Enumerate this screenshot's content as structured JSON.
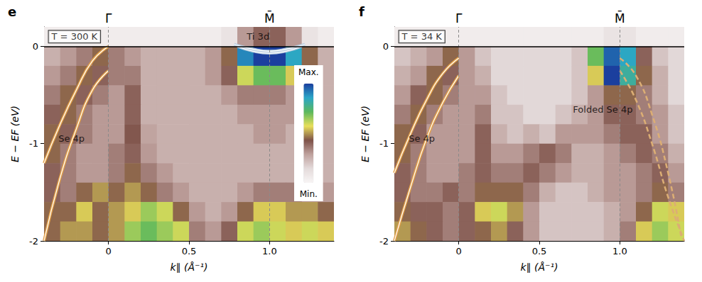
{
  "chart_data": [
    {
      "type": "heatmap",
      "title": "e",
      "x_label": "k∥ (Å⁻¹)",
      "y_label": "E − EF (eV)",
      "xlim": [
        -0.4,
        1.4
      ],
      "xticks": [
        0,
        0.5,
        {
          "value": 1,
          "label": "1.0"
        }
      ],
      "ylim": [
        -2,
        0.2
      ],
      "yticks": [
        -2,
        -1,
        0
      ],
      "grid": false,
      "reference_lines": {
        "x": [
          {
            "value": 0,
            "label": "Γ̄"
          },
          {
            "value": 1,
            "label": "M̄"
          }
        ],
        "y": [
          0
        ]
      },
      "colorbar_range": [
        0,
        1
      ],
      "colorbar_labels": [
        "Max.",
        "Min."
      ],
      "cells": {
        "x": [
          -0.35,
          -0.25,
          -0.15,
          -0.05,
          0.05,
          0.15,
          0.25,
          0.35,
          0.45,
          0.55,
          0.65,
          0.75,
          0.85,
          0.95,
          1.05,
          1.15,
          1.25,
          1.35
        ],
        "y": [
          0.1,
          -0.1,
          -0.3,
          -0.5,
          -0.7,
          -0.9,
          -1.1,
          -1.3,
          -1.5,
          -1.7,
          -1.9
        ],
        "values": [
          [
            0.05,
            0.05,
            0.05,
            0.05,
            0.05,
            0.05,
            0.05,
            0.05,
            0.05,
            0.05,
            0.05,
            0.1,
            0.3,
            0.4,
            0.4,
            0.3,
            0.1,
            0.05
          ],
          [
            0.25,
            0.3,
            0.35,
            0.45,
            0.35,
            0.3,
            0.25,
            0.25,
            0.25,
            0.25,
            0.3,
            0.45,
            0.9,
            1.0,
            1.0,
            0.85,
            0.45,
            0.25
          ],
          [
            0.3,
            0.35,
            0.45,
            0.4,
            0.35,
            0.35,
            0.25,
            0.25,
            0.25,
            0.25,
            0.3,
            0.4,
            0.6,
            0.7,
            0.7,
            0.55,
            0.35,
            0.25
          ],
          [
            0.35,
            0.45,
            0.4,
            0.35,
            0.3,
            0.4,
            0.25,
            0.25,
            0.25,
            0.25,
            0.25,
            0.3,
            0.35,
            0.35,
            0.35,
            0.3,
            0.3,
            0.25
          ],
          [
            0.4,
            0.45,
            0.35,
            0.3,
            0.3,
            0.4,
            0.25,
            0.25,
            0.25,
            0.25,
            0.25,
            0.25,
            0.3,
            0.3,
            0.3,
            0.3,
            0.25,
            0.25
          ],
          [
            0.45,
            0.4,
            0.35,
            0.3,
            0.3,
            0.42,
            0.28,
            0.25,
            0.25,
            0.25,
            0.25,
            0.25,
            0.25,
            0.3,
            0.3,
            0.25,
            0.25,
            0.25
          ],
          [
            0.45,
            0.35,
            0.3,
            0.3,
            0.35,
            0.4,
            0.3,
            0.25,
            0.25,
            0.25,
            0.25,
            0.25,
            0.25,
            0.25,
            0.25,
            0.25,
            0.25,
            0.25
          ],
          [
            0.4,
            0.35,
            0.3,
            0.3,
            0.35,
            0.45,
            0.35,
            0.3,
            0.25,
            0.25,
            0.25,
            0.25,
            0.25,
            0.25,
            0.25,
            0.25,
            0.25,
            0.25
          ],
          [
            0.4,
            0.35,
            0.45,
            0.5,
            0.45,
            0.5,
            0.45,
            0.35,
            0.3,
            0.25,
            0.25,
            0.25,
            0.3,
            0.35,
            0.35,
            0.35,
            0.3,
            0.3
          ],
          [
            0.45,
            0.45,
            0.55,
            0.45,
            0.5,
            0.55,
            0.65,
            0.6,
            0.45,
            0.3,
            0.25,
            0.3,
            0.45,
            0.55,
            0.55,
            0.5,
            0.5,
            0.45
          ],
          [
            0.45,
            0.5,
            0.5,
            0.45,
            0.5,
            0.65,
            0.7,
            0.65,
            0.6,
            0.35,
            0.3,
            0.4,
            0.6,
            0.65,
            0.6,
            0.55,
            0.6,
            0.55
          ]
        ]
      },
      "series": [
        {
          "x": [
            -0.4,
            -0.3,
            -0.2,
            -0.1,
            0
          ],
          "values": [
            -1.2,
            -0.8,
            -0.45,
            -0.15,
            0
          ],
          "color": "#e3a048",
          "line_style": "solid"
        },
        {
          "x": [
            -0.4,
            -0.3,
            -0.2,
            -0.1,
            0
          ],
          "values": [
            -2.0,
            -1.35,
            -0.85,
            -0.45,
            -0.25
          ],
          "color": "#e3a048",
          "line_style": "solid"
        },
        {
          "x": [
            0.78,
            0.9,
            1.0,
            1.1,
            1.22
          ],
          "values": [
            0.02,
            -0.03,
            -0.05,
            -0.03,
            0.02
          ],
          "color": "#b9cde0",
          "line_style": "solid"
        },
        {
          "x": [
            0.8,
            0.9,
            1.0,
            1.1,
            1.2
          ],
          "values": [
            0.0,
            -0.05,
            -0.07,
            -0.05,
            0.0
          ],
          "color": "#b9cde0",
          "line_style": "solid"
        }
      ],
      "annotations": [
        {
          "text": "T = 300 K",
          "x": -0.38,
          "y": 0.1,
          "marker": "box"
        },
        {
          "text": "Ti 3d",
          "x": 0.85,
          "y": 0.1
        },
        {
          "text": "Se 4p",
          "x": -0.32,
          "y": -0.95
        }
      ]
    },
    {
      "type": "heatmap",
      "title": "f",
      "x_label": "k∥ (Å⁻¹)",
      "y_label": "E − EF (eV)",
      "xlim": [
        -0.4,
        1.4
      ],
      "xticks": [
        0,
        0.5,
        {
          "value": 1,
          "label": "1.0"
        }
      ],
      "ylim": [
        -2,
        0.2
      ],
      "yticks": [
        -2,
        -1,
        0
      ],
      "grid": false,
      "reference_lines": {
        "x": [
          {
            "value": 0,
            "label": "Γ̄"
          },
          {
            "value": 1,
            "label": "M̄"
          }
        ],
        "y": [
          0
        ]
      },
      "colorbar_range": [
        0,
        1
      ],
      "cells": {
        "x": [
          -0.35,
          -0.25,
          -0.15,
          -0.05,
          0.05,
          0.15,
          0.25,
          0.35,
          0.45,
          0.55,
          0.65,
          0.75,
          0.85,
          0.95,
          1.05,
          1.15,
          1.25,
          1.35
        ],
        "y": [
          0.1,
          -0.1,
          -0.3,
          -0.5,
          -0.7,
          -0.9,
          -1.1,
          -1.3,
          -1.5,
          -1.7,
          -1.9
        ],
        "values": [
          [
            0.05,
            0.05,
            0.05,
            0.05,
            0.05,
            0.05,
            0.05,
            0.05,
            0.05,
            0.05,
            0.05,
            0.05,
            0.05,
            0.1,
            0.1,
            0.05,
            0.05,
            0.05
          ],
          [
            0.2,
            0.25,
            0.3,
            0.45,
            0.3,
            0.2,
            0.15,
            0.15,
            0.15,
            0.15,
            0.15,
            0.2,
            0.7,
            0.95,
            0.85,
            0.4,
            0.2,
            0.15
          ],
          [
            0.25,
            0.3,
            0.45,
            0.4,
            0.3,
            0.25,
            0.15,
            0.15,
            0.15,
            0.15,
            0.15,
            0.2,
            0.55,
            1.0,
            0.8,
            0.45,
            0.25,
            0.15
          ],
          [
            0.3,
            0.4,
            0.45,
            0.35,
            0.3,
            0.3,
            0.2,
            0.15,
            0.15,
            0.15,
            0.15,
            0.2,
            0.3,
            0.45,
            0.45,
            0.35,
            0.25,
            0.15
          ],
          [
            0.35,
            0.45,
            0.35,
            0.3,
            0.3,
            0.35,
            0.2,
            0.2,
            0.15,
            0.15,
            0.2,
            0.25,
            0.3,
            0.4,
            0.4,
            0.35,
            0.3,
            0.2
          ],
          [
            0.45,
            0.4,
            0.3,
            0.3,
            0.3,
            0.4,
            0.25,
            0.2,
            0.25,
            0.2,
            0.3,
            0.3,
            0.3,
            0.35,
            0.4,
            0.4,
            0.3,
            0.2
          ],
          [
            0.45,
            0.35,
            0.3,
            0.3,
            0.3,
            0.4,
            0.3,
            0.3,
            0.35,
            0.4,
            0.35,
            0.25,
            0.25,
            0.3,
            0.35,
            0.4,
            0.35,
            0.25
          ],
          [
            0.4,
            0.35,
            0.3,
            0.3,
            0.35,
            0.4,
            0.35,
            0.35,
            0.4,
            0.35,
            0.3,
            0.25,
            0.25,
            0.3,
            0.3,
            0.35,
            0.4,
            0.3
          ],
          [
            0.4,
            0.35,
            0.35,
            0.4,
            0.35,
            0.45,
            0.45,
            0.45,
            0.35,
            0.25,
            0.2,
            0.2,
            0.25,
            0.3,
            0.3,
            0.35,
            0.45,
            0.35
          ],
          [
            0.45,
            0.4,
            0.4,
            0.35,
            0.4,
            0.55,
            0.6,
            0.5,
            0.3,
            0.2,
            0.2,
            0.2,
            0.2,
            0.25,
            0.3,
            0.45,
            0.6,
            0.55
          ],
          [
            0.5,
            0.45,
            0.4,
            0.35,
            0.4,
            0.45,
            0.5,
            0.4,
            0.3,
            0.2,
            0.2,
            0.2,
            0.2,
            0.25,
            0.35,
            0.55,
            0.65,
            0.6
          ]
        ]
      },
      "series": [
        {
          "x": [
            -0.4,
            -0.3,
            -0.2,
            -0.1,
            0
          ],
          "values": [
            -1.3,
            -0.9,
            -0.55,
            -0.28,
            -0.12
          ],
          "color": "#e3a048",
          "line_style": "solid"
        },
        {
          "x": [
            -0.4,
            -0.3,
            -0.2,
            -0.1,
            0
          ],
          "values": [
            -2.0,
            -1.45,
            -0.95,
            -0.58,
            -0.3
          ],
          "color": "#e3a048",
          "line_style": "solid"
        },
        {
          "x": [
            1.0,
            1.1,
            1.2,
            1.3,
            1.38
          ],
          "values": [
            -0.12,
            -0.3,
            -0.7,
            -1.3,
            -1.95
          ],
          "color": "#dcae74",
          "line_style": "dashed"
        },
        {
          "x": [
            1.0,
            1.1,
            1.2,
            1.3,
            1.4
          ],
          "values": [
            -0.25,
            -0.55,
            -1.0,
            -1.55,
            -2.0
          ],
          "color": "#dcae74",
          "line_style": "dashed"
        }
      ],
      "annotations": [
        {
          "text": "T = 34 K",
          "x": -0.38,
          "y": 0.1,
          "marker": "box"
        },
        {
          "text": "Se 4p",
          "x": -0.32,
          "y": -0.95
        },
        {
          "text": "Folded Se 4p",
          "x": 0.7,
          "y": -0.65
        }
      ]
    }
  ]
}
